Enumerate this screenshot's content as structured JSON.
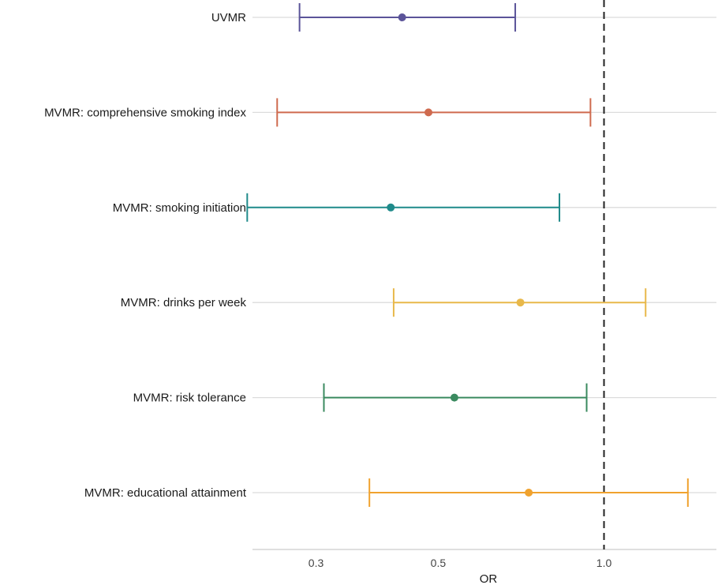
{
  "chart_data": {
    "type": "forest",
    "xlabel": "OR",
    "x_scale": "log",
    "xlim": [
      0.23,
      1.6
    ],
    "xticks": [
      {
        "value": 0.3,
        "label": "0.3"
      },
      {
        "value": 0.5,
        "label": "0.5"
      },
      {
        "value": 1.0,
        "label": "1.0"
      }
    ],
    "reference_line": 1.0,
    "grid": "horizontal",
    "rows": [
      {
        "label": "UVMR",
        "or": 0.43,
        "lower": 0.28,
        "upper": 0.69,
        "color": "#5b5499"
      },
      {
        "label": "MVMR: comprehensive smoking index",
        "or": 0.48,
        "lower": 0.255,
        "upper": 0.945,
        "color": "#cf6a4e"
      },
      {
        "label": "MVMR: smoking initiation",
        "or": 0.41,
        "lower": 0.225,
        "upper": 0.83,
        "color": "#1f8a8a"
      },
      {
        "label": "MVMR: drinks per week",
        "or": 0.705,
        "lower": 0.415,
        "upper": 1.19,
        "color": "#e8b84a"
      },
      {
        "label": "MVMR: risk tolerance",
        "or": 0.535,
        "lower": 0.31,
        "upper": 0.93,
        "color": "#3a8a5f"
      },
      {
        "label": "MVMR: educational attainment",
        "or": 0.73,
        "lower": 0.375,
        "upper": 1.42,
        "color": "#f0a22e"
      }
    ]
  }
}
